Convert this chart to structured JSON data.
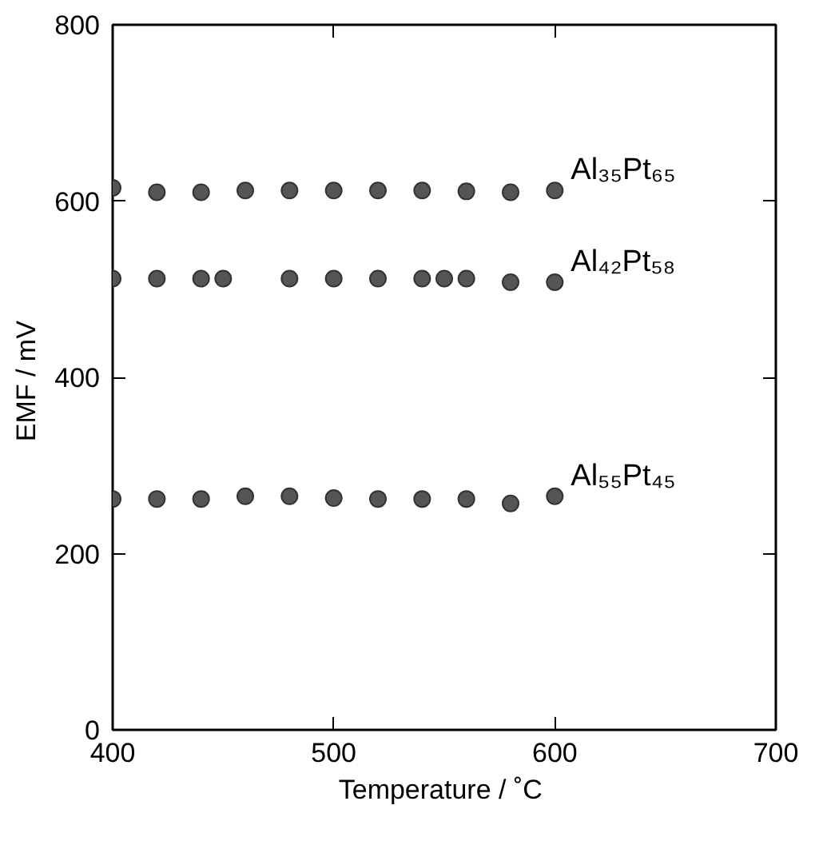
{
  "chart_data": {
    "type": "scatter",
    "xlabel": "Temperature  / ˚C",
    "ylabel": "EMF  / mV",
    "xlim": [
      400,
      700
    ],
    "ylim": [
      0,
      800
    ],
    "xticks": [
      400,
      500,
      600,
      700
    ],
    "yticks": [
      0,
      200,
      400,
      600,
      800
    ],
    "marker": "circle",
    "series": [
      {
        "name": "Al₃₅Pt₆₅",
        "color": "#555555",
        "x": [
          400,
          420,
          440,
          460,
          480,
          500,
          520,
          540,
          560,
          580,
          600
        ],
        "values": [
          615,
          610,
          610,
          612,
          612,
          612,
          612,
          612,
          611,
          610,
          612
        ]
      },
      {
        "name": "Al₄₂Pt₅₈",
        "color": "#555555",
        "x": [
          400,
          420,
          440,
          450,
          480,
          500,
          520,
          540,
          550,
          560,
          580,
          600
        ],
        "values": [
          512,
          512,
          512,
          512,
          512,
          512,
          512,
          512,
          512,
          512,
          508,
          508
        ]
      },
      {
        "name": "Al₅₅Pt₄₅",
        "color": "#555555",
        "x": [
          400,
          420,
          440,
          460,
          480,
          500,
          520,
          540,
          560,
          580,
          600
        ],
        "values": [
          262,
          262,
          262,
          265,
          265,
          263,
          262,
          262,
          262,
          257,
          265
        ]
      }
    ]
  }
}
